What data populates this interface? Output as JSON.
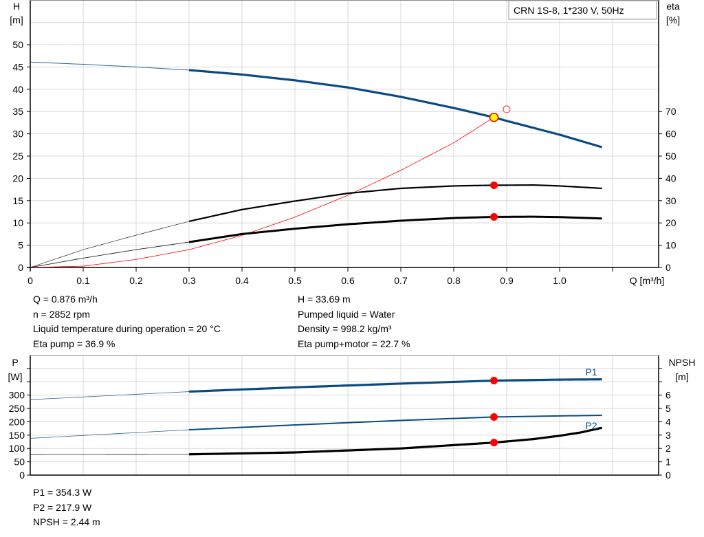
{
  "colors": {
    "head": "#0a4a82",
    "eta": "#000000",
    "system": "#ff0000",
    "power": "#0a4a82",
    "npsh": "#000000",
    "marker": "#ff0000",
    "duty_point": "#ffff00",
    "grid": "#d8d8d8"
  },
  "chart_data": [
    {
      "type": "line",
      "legend_box": "CRN 1S-8, 1*230 V, 50Hz",
      "xlabel": "Q [m³/h]",
      "ylabel_left": [
        "H",
        "[m]"
      ],
      "ylabel_right": [
        "eta",
        "[%]"
      ],
      "xlim": [
        0,
        1.1
      ],
      "ylim_left": [
        0,
        55
      ],
      "ylim_right": [
        0,
        70
      ],
      "grid": true,
      "x_ticks": [
        "0",
        "0.1",
        "0.2",
        "0.3",
        "0.4",
        "0.5",
        "0.6",
        "0.7",
        "0.8",
        "0.9",
        "1.0"
      ],
      "y_ticks_left": [
        "0",
        "5",
        "10",
        "15",
        "20",
        "25",
        "30",
        "35",
        "40",
        "45",
        "50"
      ],
      "y_ticks_right": [
        "0",
        "10",
        "20",
        "30",
        "40",
        "50",
        "60",
        "70"
      ],
      "series": [
        {
          "key": "H",
          "axis": "left",
          "x": [
            0,
            0.1,
            0.2,
            0.3,
            0.4,
            0.5,
            0.6,
            0.7,
            0.8,
            0.876,
            0.9,
            1.0,
            1.08
          ],
          "y": [
            46.1,
            45.6,
            45.0,
            44.3,
            43.3,
            42.0,
            40.4,
            38.3,
            35.8,
            33.69,
            32.9,
            29.8,
            27.0
          ],
          "operating_from": 0.3
        },
        {
          "key": "eta_pump",
          "axis": "right",
          "x": [
            0,
            0.1,
            0.2,
            0.3,
            0.4,
            0.5,
            0.6,
            0.7,
            0.8,
            0.876,
            0.95,
            1.0,
            1.08
          ],
          "y": [
            0,
            8,
            14.5,
            20.7,
            26,
            29.8,
            33.3,
            35.5,
            36.6,
            36.9,
            37,
            36.6,
            35.5
          ],
          "operating_from": 0.3
        },
        {
          "key": "eta_pump_motor",
          "axis": "right",
          "x": [
            0,
            0.1,
            0.2,
            0.3,
            0.4,
            0.5,
            0.6,
            0.7,
            0.8,
            0.876,
            0.95,
            1.0,
            1.08
          ],
          "y": [
            0,
            4.2,
            8,
            11.4,
            15,
            17.4,
            19.4,
            21,
            22.2,
            22.7,
            22.8,
            22.6,
            22.0
          ],
          "operating_from": 0.3
        },
        {
          "key": "system_curve",
          "axis": "left",
          "x": [
            0,
            0.1,
            0.2,
            0.3,
            0.4,
            0.5,
            0.6,
            0.7,
            0.8,
            0.876
          ],
          "y": [
            0,
            0.3,
            1.8,
            4.0,
            7.2,
            11.3,
            16.2,
            21.8,
            28.0,
            33.69
          ]
        }
      ],
      "duty_point": {
        "Q": 0.876,
        "H": 33.69,
        "eta_pump": 36.9,
        "eta_pump_motor": 22.7
      },
      "open_marker": {
        "Q": 0.9,
        "H": 35.5
      }
    },
    {
      "type": "line",
      "ylabel_left": [
        "P",
        "[W]"
      ],
      "ylabel_right": [
        "NPSH",
        "[m]"
      ],
      "xlim": [
        0,
        1.1
      ],
      "ylim_left": [
        0,
        400
      ],
      "ylim_right": [
        0,
        8
      ],
      "grid": true,
      "y_ticks_left": [
        "0",
        "50",
        "100",
        "150",
        "200",
        "250",
        "300"
      ],
      "y_ticks_right": [
        "0",
        "1",
        "2",
        "3",
        "4",
        "5",
        "6"
      ],
      "series": [
        {
          "key": "P1",
          "name": "P1",
          "axis": "left",
          "x": [
            0,
            0.3,
            0.5,
            0.7,
            0.876,
            1.0,
            1.08
          ],
          "y": [
            283,
            313,
            329,
            343,
            354.3,
            358,
            359
          ],
          "operating_from": 0.3
        },
        {
          "key": "P2",
          "name": "P2",
          "axis": "left",
          "x": [
            0,
            0.3,
            0.5,
            0.7,
            0.876,
            1.0,
            1.08
          ],
          "y": [
            138,
            170,
            188,
            205,
            217.9,
            222,
            224
          ],
          "operating_from": 0.3
        },
        {
          "key": "NPSH",
          "axis": "right",
          "x": [
            0,
            0.3,
            0.5,
            0.7,
            0.876,
            0.95,
            1.0,
            1.04,
            1.08
          ],
          "y": [
            1.55,
            1.56,
            1.7,
            2.0,
            2.44,
            2.7,
            2.95,
            3.2,
            3.55
          ],
          "operating_from": 0.3
        }
      ],
      "duty_point": {
        "Q": 0.876,
        "P1": 354.3,
        "P2": 217.9,
        "NPSH": 2.44
      }
    }
  ],
  "info_top": {
    "left": [
      "Q = 0.876 m³/h",
      "n = 2852 rpm",
      "Liquid temperature during operation = 20 °C",
      "Eta pump = 36.9 %"
    ],
    "right": [
      "H = 33.69 m",
      "Pumped liquid = Water",
      "Density = 998.2 kg/m³",
      "Eta pump+motor = 22.7 %"
    ]
  },
  "info_bottom": [
    "P1 = 354.3 W",
    "P2 = 217.9 W",
    "NPSH = 2.44 m"
  ]
}
